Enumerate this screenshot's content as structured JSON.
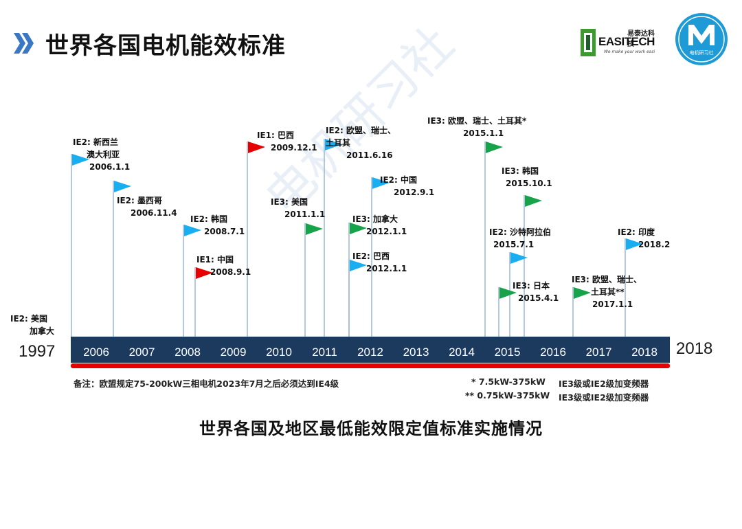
{
  "title": "世界各国电机能效标准",
  "logos": {
    "easitech_cn": "易泰达科技",
    "easitech_name": "EASITECH",
    "easitech_slogan": "We make your work easi",
    "m_logo_text": "电机研习社"
  },
  "watermark": "电机研习社",
  "colors": {
    "bar": "#1b3a5e",
    "red_line": "#e60000",
    "ie1": "#e60000",
    "ie2": "#19aef0",
    "ie3": "#16a34a"
  },
  "timeline": {
    "start_label": "1997",
    "end_label": "2018",
    "years": [
      "2006",
      "2007",
      "2008",
      "2009",
      "2010",
      "2011",
      "2012",
      "2013",
      "2014",
      "2015",
      "2016",
      "2017",
      "2018"
    ]
  },
  "events": [
    {
      "level": "IE2",
      "lines": [
        "IE2: 新西兰",
        "澳大利亚",
        "2006.1.1"
      ]
    },
    {
      "level": "IE2",
      "lines": [
        "IE2: 墨西哥",
        "2006.11.4"
      ]
    },
    {
      "level": "IE2",
      "lines": [
        "IE2: 韩国",
        "2008.7.1"
      ]
    },
    {
      "level": "IE1",
      "lines": [
        "IE1:   中国",
        "2008.9.1"
      ]
    },
    {
      "level": "IE1",
      "lines": [
        "IE1: 巴西",
        "2009.12.1"
      ]
    },
    {
      "level": "IE3",
      "lines": [
        "IE3: 美国",
        "2011.1.1"
      ]
    },
    {
      "level": "IE2",
      "lines": [
        "IE2: 欧盟、瑞士、",
        "土耳其",
        "2011.6.16"
      ]
    },
    {
      "level": "IE3",
      "lines": [
        "IE3: 加拿大",
        "2012.1.1"
      ]
    },
    {
      "level": "IE2",
      "lines": [
        "IE2: 巴西",
        "2012.1.1"
      ]
    },
    {
      "level": "IE2",
      "lines": [
        "IE2: 中国",
        "2012.9.1"
      ]
    },
    {
      "level": "IE3",
      "lines": [
        "IE3: 欧盟、瑞士、土耳其*",
        "2015.1.1"
      ]
    },
    {
      "level": "IE3",
      "lines": [
        "IE3: 韩国",
        "2015.10.1"
      ]
    },
    {
      "level": "IE2",
      "lines": [
        "IE2: 沙特阿拉伯",
        "2015.7.1"
      ]
    },
    {
      "level": "IE3",
      "lines": [
        "IE3: 日本",
        "2015.4.1"
      ]
    },
    {
      "level": "IE3",
      "lines": [
        "IE3: 欧盟、瑞士、",
        "土耳其**",
        "2017.1.1"
      ]
    },
    {
      "level": "IE2",
      "lines": [
        "IE2: 印度",
        "2018.2"
      ]
    },
    {
      "level": "IE2",
      "lines": [
        "IE2: 美国",
        "加拿大"
      ]
    }
  ],
  "notes": {
    "left": "备注：欧盟规定75-200kW三相电机2023年7月之后必须达到IE4级",
    "right1_mark": "*  7.5kW-375kW",
    "right1_text": "IE3级或IE2级加变频器",
    "right2_mark": "** 0.75kW-375kW",
    "right2_text": "IE3级或IE2级加变频器"
  },
  "caption": "世界各国及地区最低能效限定值标准实施情况"
}
